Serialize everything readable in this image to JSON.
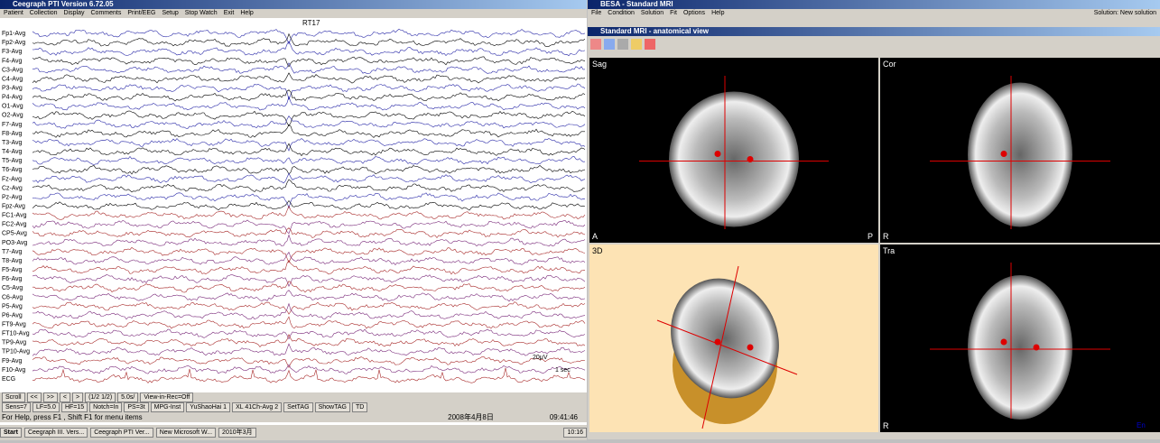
{
  "left_window": {
    "title": "Ceegraph PTI Version 6.72.05",
    "menu": [
      "Patient",
      "Collection",
      "Display",
      "Comments",
      "Print/EEG",
      "Setup",
      "Stop Watch",
      "Exit",
      "Help"
    ],
    "channels": [
      "Fp1-Avg",
      "Fp2-Avg",
      "F3-Avg",
      "F4-Avg",
      "C3-Avg",
      "C4-Avg",
      "P3-Avg",
      "P4-Avg",
      "O1-Avg",
      "O2-Avg",
      "F7-Avg",
      "F8-Avg",
      "T3-Avg",
      "T4-Avg",
      "T5-Avg",
      "T6-Avg",
      "Fz-Avg",
      "Cz-Avg",
      "Pz-Avg",
      "Fpz-Avg",
      "FC1-Avg",
      "FC2-Avg",
      "CP5-Avg",
      "PO3-Avg",
      "T7-Avg",
      "T8-Avg",
      "F5-Avg",
      "F6-Avg",
      "C5-Avg",
      "C6-Avg",
      "P5-Avg",
      "P6-Avg",
      "FT9-Avg",
      "FT10-Avg",
      "TP9-Avg",
      "TP10-Avg",
      "F9-Avg",
      "F10-Avg",
      "ECG"
    ],
    "event_marker": "RT17",
    "scale_labels": [
      "20μV",
      "1 sec"
    ],
    "toolbar1": [
      "Scroll",
      "<<",
      ">>",
      "<",
      ">",
      "(1/2 1/2)",
      "5.0s/",
      "View-in-Rec=Off"
    ],
    "toolbar2": [
      "Sens=7",
      "LF=5.0",
      "HF=15",
      "Notch=In",
      "PS=3t",
      "MPG-Inst",
      "YuShaoHai 1",
      "XL 41Ch-Avg 2",
      "SetTAG",
      "ShowTAG",
      "TD"
    ],
    "status": "For Help, press F1 , Shift F1 for menu items",
    "date": "2008年4月8日",
    "time": "09:41:46"
  },
  "taskbar": {
    "start": "Start",
    "items": [
      "Ceegraph III. Vers...",
      "Ceegraph PTI Ver...",
      "New Microsoft W...",
      "2010年3月"
    ],
    "clock": "10:16"
  },
  "right_window": {
    "title": "BESA - Standard MRI",
    "menu": [
      "File",
      "Condition",
      "Solution",
      "Fit",
      "Options",
      "Help"
    ],
    "solution": "Solution: New solution",
    "subwindow_title": "Standard MRI - anatomical view",
    "panels": [
      {
        "label": "Sag",
        "corners": [
          "A",
          "P"
        ]
      },
      {
        "label": "Cor",
        "corners": [
          "R"
        ]
      },
      {
        "label": "3D",
        "corners": []
      },
      {
        "label": "Tra",
        "corners": [
          "R"
        ]
      }
    ],
    "language": "En"
  }
}
